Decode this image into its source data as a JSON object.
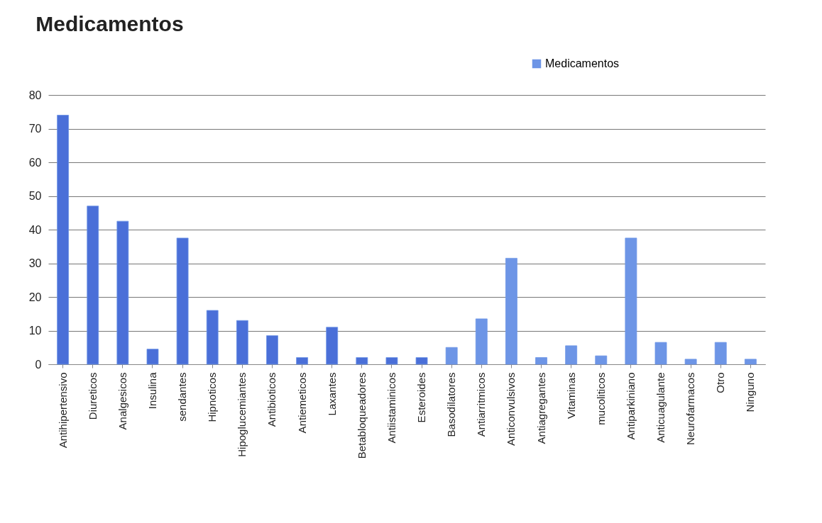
{
  "chart_data": {
    "type": "bar",
    "title": "Medicamentos",
    "categories": [
      "Antihipertensivo",
      "Diureticos",
      "Analgesicos",
      "Insulina",
      "sendantes",
      "Hipnoticos",
      "Hipoglucemiantes",
      "Antibioticos",
      "Antiemeticos",
      "Laxantes",
      "Betabloqueadores",
      "Antiistaminicos",
      "Esteroides",
      "Basodilatores",
      "Antiarritmicos",
      "Anticonvulsivos",
      "Antiagregantes",
      "Vitaminas",
      "mucoliticos",
      "Antiparkiniano",
      "Anticuagulante",
      "Neurofarmacos",
      "Otro",
      "Ninguno"
    ],
    "series": [
      {
        "name": "Medicamentos",
        "color": "#6d95e6",
        "values": [
          74,
          47,
          42.5,
          4.5,
          37.5,
          16,
          13,
          8.5,
          2,
          11,
          2,
          2,
          2,
          5,
          13.5,
          31.5,
          2,
          5.5,
          2.5,
          37.5,
          6.5,
          1.5,
          6.5,
          1.5
        ],
        "colors": [
          "#4a6fd8",
          "#4a6fd8",
          "#4a6fd8",
          "#4a6fd8",
          "#4a6fd8",
          "#4a6fd8",
          "#4a6fd8",
          "#4a6fd8",
          "#4a6fd8",
          "#4a6fd8",
          "#4a6fd8",
          "#4a6fd8",
          "#4a6fd8",
          "#6d95e6",
          "#6d95e6",
          "#6d95e6",
          "#6d95e6",
          "#6d95e6",
          "#6d95e6",
          "#6d95e6",
          "#6d95e6",
          "#6d95e6",
          "#6d95e6",
          "#6d95e6"
        ]
      }
    ],
    "ylim": [
      0,
      80
    ],
    "yticks": [
      0,
      10,
      20,
      30,
      40,
      50,
      60,
      70,
      80
    ],
    "grid": "y",
    "legend": "top right"
  }
}
